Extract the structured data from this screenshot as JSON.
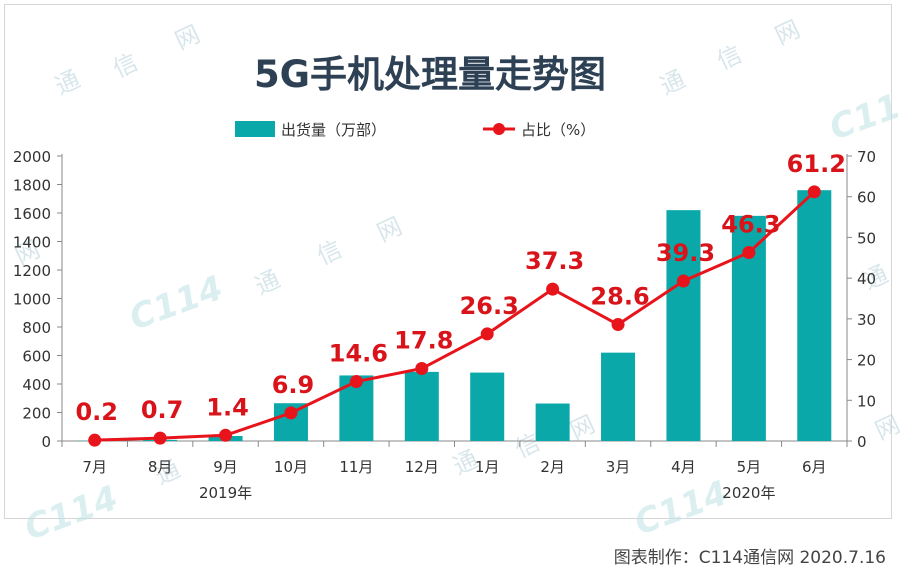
{
  "chart_data": {
    "type": "bar+line",
    "title": "5G手机处理量走势图",
    "categories": [
      "7月",
      "8月",
      "9月",
      "10月",
      "11月",
      "12月",
      "1月",
      "2月",
      "3月",
      "4月",
      "5月",
      "6月"
    ],
    "year_labels": [
      {
        "text": "2019年",
        "category": "9月"
      },
      {
        "text": "2020年",
        "category": "5月"
      }
    ],
    "series": [
      {
        "name": "出货量（万部）",
        "type": "bar",
        "axis": "left",
        "color": "#0aa8a8",
        "values": [
          2,
          8,
          35,
          265,
          460,
          485,
          480,
          263,
          620,
          1620,
          1580,
          1760
        ]
      },
      {
        "name": "占比（%）",
        "type": "line",
        "axis": "right",
        "color": "#e8141c",
        "values": [
          0.2,
          0.7,
          1.4,
          6.9,
          14.6,
          17.8,
          26.3,
          37.3,
          28.6,
          39.3,
          46.3,
          61.2
        ]
      }
    ],
    "y_left": {
      "min": 0,
      "max": 2000,
      "ticks": [
        "0",
        "200",
        "400",
        "600",
        "800",
        "1000",
        "1200",
        "1400",
        "1600",
        "1800",
        "2000"
      ]
    },
    "y_right": {
      "min": 0,
      "max": 70,
      "ticks": [
        "0",
        "10",
        "20",
        "30",
        "40",
        "50",
        "60",
        "70"
      ]
    },
    "grid": false,
    "legend_position": "top-center"
  },
  "watermark": {
    "chars": [
      "通",
      "信",
      "网"
    ],
    "logo": "C114"
  },
  "credit": "图表制作：C114通信网  2020.7.16"
}
